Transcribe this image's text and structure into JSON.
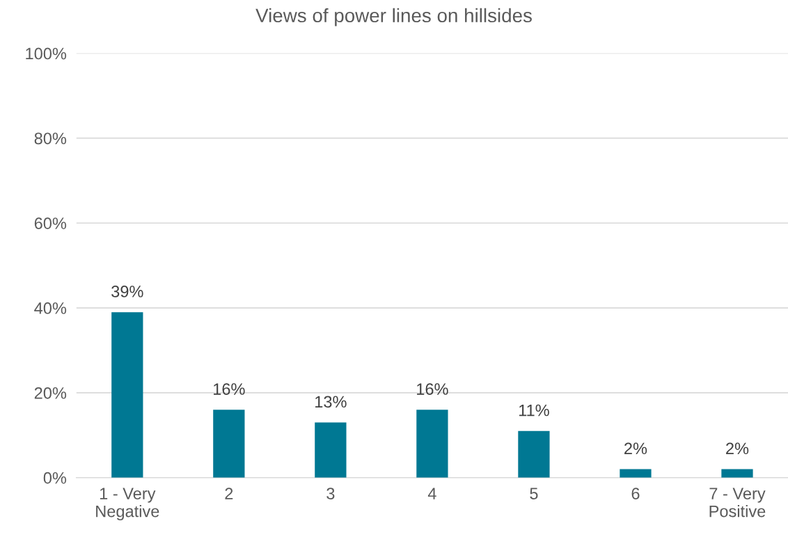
{
  "chart_data": {
    "type": "bar",
    "title": "Views of power lines on hillsides",
    "categories": [
      "1 - Very\nNegative",
      "2",
      "3",
      "4",
      "5",
      "6",
      "7 - Very\nPositive"
    ],
    "values": [
      39,
      16,
      13,
      16,
      11,
      2,
      2
    ],
    "value_labels": [
      "39%",
      "16%",
      "13%",
      "16%",
      "11%",
      "2%",
      "2%"
    ],
    "color": "#007893",
    "ylim": [
      0,
      100
    ],
    "yticks": [
      {
        "value": 0,
        "label": "0%"
      },
      {
        "value": 20,
        "label": "20%"
      },
      {
        "value": 40,
        "label": "40%"
      },
      {
        "value": 60,
        "label": "60%"
      },
      {
        "value": 80,
        "label": "80%"
      },
      {
        "value": 100,
        "label": "100%"
      }
    ],
    "grid": "y",
    "legend": false
  }
}
